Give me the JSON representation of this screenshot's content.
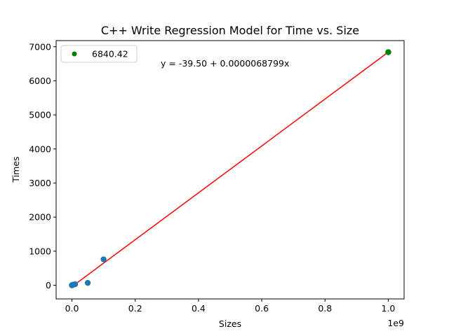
{
  "chart_data": {
    "type": "scatter",
    "title": "C++ Write Regression Model for Time vs. Size",
    "xlabel": "Sizes",
    "ylabel": "Times",
    "x_offset_label": "1e9",
    "xlim": [
      -50000000,
      1050000000
    ],
    "ylim": [
      -400,
      7180
    ],
    "xticks": [
      0,
      200000000,
      400000000,
      600000000,
      800000000,
      1000000000
    ],
    "xtick_labels": [
      "0.0",
      "0.2",
      "0.4",
      "0.6",
      "0.8",
      "1.0"
    ],
    "yticks": [
      0,
      1000,
      2000,
      3000,
      4000,
      5000,
      6000,
      7000
    ],
    "ytick_labels": [
      "0",
      "1000",
      "2000",
      "3000",
      "4000",
      "5000",
      "6000",
      "7000"
    ],
    "grid": false,
    "series": [
      {
        "kind": "scatter",
        "color": "#1f77b4",
        "points": [
          {
            "x": 1000,
            "y": 0
          },
          {
            "x": 10000,
            "y": 0
          },
          {
            "x": 100000,
            "y": 1
          },
          {
            "x": 1000000,
            "y": 5
          },
          {
            "x": 5000000,
            "y": 20
          },
          {
            "x": 10000000,
            "y": 30
          },
          {
            "x": 50000000,
            "y": 70
          },
          {
            "x": 100000000,
            "y": 760
          },
          {
            "x": 1000000000,
            "y": 6840
          }
        ]
      },
      {
        "kind": "line",
        "color": "#ff0000",
        "points": [
          {
            "x": 1000,
            "y": -39.5
          },
          {
            "x": 1000000000,
            "y": 6840.4
          }
        ]
      },
      {
        "kind": "scatter",
        "name": "6840.42",
        "color": "#008000",
        "points": [
          {
            "x": 1000000000,
            "y": 6840.42
          }
        ]
      }
    ],
    "legend": {
      "placement": "top-left",
      "entries": [
        {
          "label": "6840.42",
          "color": "#008000"
        }
      ]
    },
    "annotation": {
      "text": "y = -39.50 + 0.0000068799x"
    }
  }
}
